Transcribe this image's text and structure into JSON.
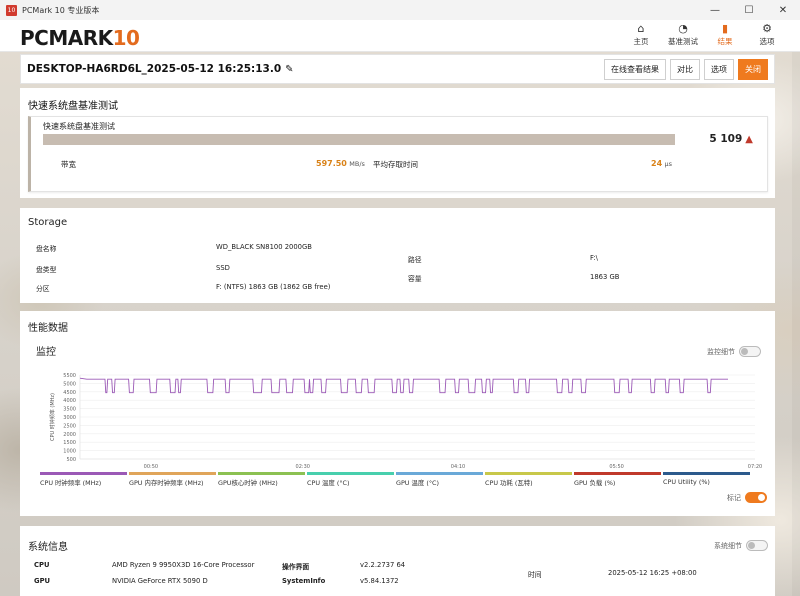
{
  "window": {
    "title": "PCMark 10 专业版本",
    "icon_text": "10",
    "controls": [
      "—",
      "☐",
      "✕"
    ]
  },
  "header": {
    "logo_main": "PCMARK",
    "logo_ten": "10",
    "nav": [
      {
        "label": "主页",
        "icon": "⌂"
      },
      {
        "label": "基准测试",
        "icon": "◔"
      },
      {
        "label": "结果",
        "icon": "▮"
      },
      {
        "label": "选项",
        "icon": "⚙"
      }
    ]
  },
  "result": {
    "title": "DESKTOP-HA6RD6L_2025-05-12 16:25:13.0",
    "buttons": [
      "在线查看结果",
      "对比",
      "选项",
      "关闭"
    ]
  },
  "benchmark": {
    "heading": "快速系统盘基准测试",
    "sub": "快速系统盘基准测试",
    "score": "5 109",
    "score_bar_fraction": 1.0,
    "bandwidth_label": "带宽",
    "bandwidth_value": "597.50",
    "bandwidth_unit": "MB/s",
    "access_label": "平均存取时间",
    "access_value": "24",
    "access_unit": "μs"
  },
  "storage": {
    "heading": "Storage",
    "disk_name_label": "盘名称",
    "disk_name": "WD_BLACK SN8100 2000GB",
    "disk_type_label": "盘类型",
    "disk_type": "SSD",
    "partition_label": "分区",
    "partition": "F: (NTFS) 1863 GB (1862 GB free)",
    "path_label": "路径",
    "path": "F:\\",
    "capacity_label": "容量",
    "capacity": "1863 GB"
  },
  "performance": {
    "heading": "性能数据",
    "monitor_heading": "监控",
    "monitor_detail_label": "监控细节",
    "marker_label": "标记",
    "legend": [
      {
        "label": "CPU 时钟频率 (MHz)",
        "color": "#9b59b6"
      },
      {
        "label": "GPU 内存时钟频率 (MHz)",
        "color": "#e0a55a"
      },
      {
        "label": "GPU核心时钟 (MHz)",
        "color": "#8cc152"
      },
      {
        "label": "CPU 温度 (°C)",
        "color": "#48cfad"
      },
      {
        "label": "GPU 温度 (°C)",
        "color": "#6aa9d8"
      },
      {
        "label": "CPU 功耗 (瓦特)",
        "color": "#c8c84a"
      },
      {
        "label": "GPU 负载 (%)",
        "color": "#c0392b"
      },
      {
        "label": "CPU Utility (%)",
        "color": "#2c5a8c"
      }
    ]
  },
  "chart_data": {
    "type": "line",
    "ylabel": "CPU 时钟频率 (MHz)",
    "yticks": [
      "5500",
      "5000",
      "4500",
      "4000",
      "3500",
      "3000",
      "2500",
      "2000",
      "1500",
      "1000",
      "500"
    ],
    "xticks": [
      "00:50",
      "02:30",
      "04:10",
      "05:50",
      "07:20"
    ],
    "ylim": [
      500,
      5500
    ],
    "series": [
      {
        "name": "CPU 时钟频率 (MHz)",
        "color": "#9b59b6",
        "baseline": 5250,
        "dip": 4450,
        "dips": [
          [
            0.037,
            0.041
          ],
          [
            0.047,
            0.052
          ],
          [
            0.072,
            0.08
          ],
          [
            0.103,
            0.114
          ],
          [
            0.133,
            0.142
          ],
          [
            0.145,
            0.15
          ],
          [
            0.188,
            0.198
          ],
          [
            0.215,
            0.222
          ],
          [
            0.256,
            0.27
          ],
          [
            0.283,
            0.296
          ],
          [
            0.305,
            0.316
          ],
          [
            0.332,
            0.34
          ],
          [
            0.34,
            0.346
          ],
          [
            0.357,
            0.365
          ],
          [
            0.386,
            0.397
          ],
          [
            0.408,
            0.418
          ],
          [
            0.426,
            0.437
          ],
          [
            0.462,
            0.47
          ],
          [
            0.474,
            0.48
          ],
          [
            0.487,
            0.494
          ],
          [
            0.532,
            0.542
          ],
          [
            0.555,
            0.562
          ],
          [
            0.575,
            0.586
          ],
          [
            0.595,
            0.602
          ],
          [
            0.607,
            0.612
          ],
          [
            0.642,
            0.65
          ],
          [
            0.66,
            0.666
          ],
          [
            0.706,
            0.715
          ],
          [
            0.723,
            0.73
          ],
          [
            0.742,
            0.75
          ],
          [
            0.791,
            0.8
          ],
          [
            0.812,
            0.818
          ],
          [
            0.845,
            0.852
          ],
          [
            0.867,
            0.873
          ],
          [
            0.888,
            0.895
          ],
          [
            0.929,
            0.935
          ]
        ],
        "end": 0.96
      }
    ]
  },
  "sysinfo": {
    "heading": "系统信息",
    "detail_label": "系统细节",
    "cpu_label": "CPU",
    "cpu": "AMD Ryzen 9 9950X3D 16-Core Processor",
    "gpu_label": "GPU",
    "gpu": "NVIDIA GeForce RTX 5090 D",
    "os_label": "操作界面",
    "os": "v2.2.2737 64",
    "sysinfo_label": "SystemInfo",
    "sysinfo": "v5.84.1372",
    "time_label": "时间",
    "time": "2025-05-12 16:25 +08:00"
  }
}
